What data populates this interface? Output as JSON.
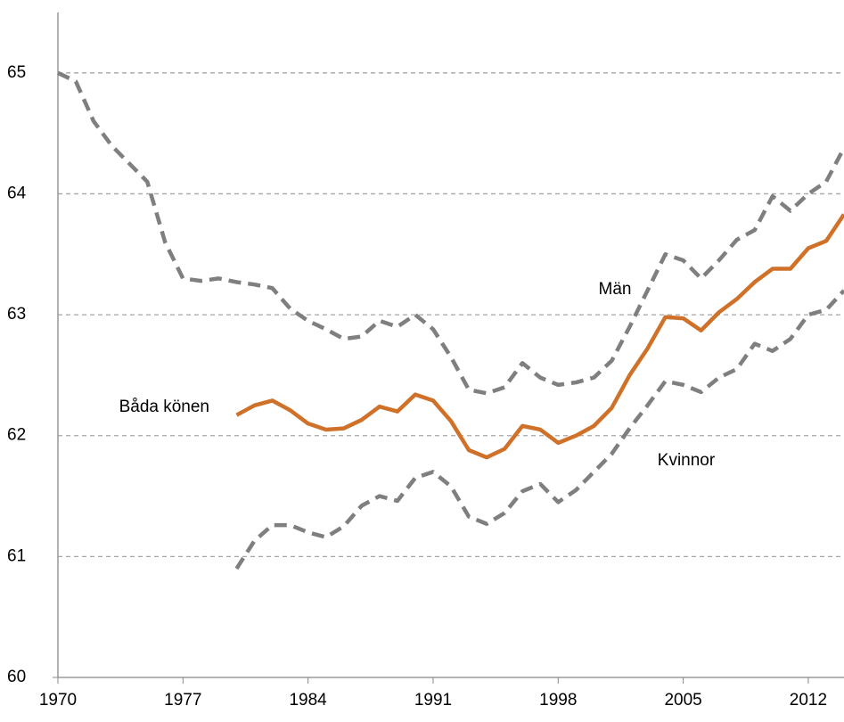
{
  "chart_data": {
    "type": "line",
    "x": [
      1970,
      1971,
      1972,
      1973,
      1974,
      1975,
      1976,
      1977,
      1978,
      1979,
      1980,
      1981,
      1982,
      1983,
      1984,
      1985,
      1986,
      1987,
      1988,
      1989,
      1990,
      1991,
      1992,
      1993,
      1994,
      1995,
      1996,
      1997,
      1998,
      1999,
      2000,
      2001,
      2002,
      2003,
      2004,
      2005,
      2006,
      2007,
      2008,
      2009,
      2010,
      2011,
      2012,
      2013,
      2014
    ],
    "series": [
      {
        "name": "Män",
        "color": "#7f7f7f",
        "dashed": true,
        "values": [
          65.0,
          64.93,
          64.6,
          64.4,
          64.25,
          64.1,
          63.6,
          63.3,
          63.28,
          63.3,
          63.27,
          63.25,
          63.22,
          63.05,
          62.95,
          62.88,
          62.8,
          62.82,
          62.95,
          62.9,
          63.0,
          62.88,
          62.65,
          62.38,
          62.35,
          62.4,
          62.6,
          62.48,
          62.42,
          62.44,
          62.48,
          62.62,
          62.9,
          63.2,
          63.5,
          63.45,
          63.3,
          63.45,
          63.62,
          63.7,
          63.98,
          63.86,
          64.0,
          64.1,
          64.38
        ]
      },
      {
        "name": "Båda könen",
        "color": "#d0712a",
        "dashed": false,
        "values": [
          null,
          null,
          null,
          null,
          null,
          null,
          null,
          null,
          null,
          null,
          62.17,
          62.25,
          62.29,
          62.21,
          62.1,
          62.05,
          62.06,
          62.13,
          62.24,
          62.2,
          62.34,
          62.29,
          62.12,
          61.88,
          61.82,
          61.89,
          62.08,
          62.05,
          61.94,
          62.0,
          62.08,
          62.23,
          62.5,
          62.72,
          62.98,
          62.97,
          62.87,
          63.02,
          63.13,
          63.27,
          63.38,
          63.38,
          63.55,
          63.61,
          63.83
        ]
      },
      {
        "name": "Kvinnor",
        "color": "#7f7f7f",
        "dashed": true,
        "values": [
          null,
          null,
          null,
          null,
          null,
          null,
          null,
          null,
          null,
          null,
          60.9,
          61.13,
          61.26,
          61.26,
          61.2,
          61.16,
          61.25,
          61.42,
          61.5,
          61.46,
          61.65,
          61.7,
          61.58,
          61.33,
          61.27,
          61.36,
          61.54,
          61.6,
          61.45,
          61.55,
          61.7,
          61.85,
          62.06,
          62.25,
          62.45,
          62.42,
          62.36,
          62.48,
          62.55,
          62.76,
          62.7,
          62.8,
          63.0,
          63.04,
          63.2
        ]
      }
    ],
    "xlim": [
      1970,
      2014
    ],
    "xticks": [
      1970,
      1977,
      1984,
      1991,
      1998,
      2005,
      2012
    ],
    "ylim": [
      60,
      65.5
    ],
    "yticks": [
      60,
      61,
      62,
      63,
      64,
      65
    ],
    "grid": true
  }
}
